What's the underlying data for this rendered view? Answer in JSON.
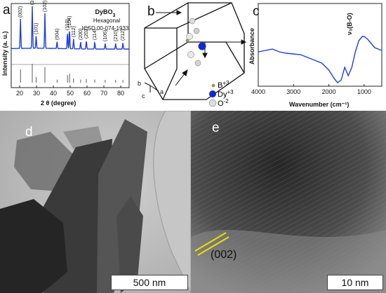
{
  "panels": {
    "a": {
      "letter": "a"
    },
    "b": {
      "letter": "b"
    },
    "c": {
      "letter": "c"
    },
    "d": {
      "letter": "d",
      "scale_bar": "500 nm"
    },
    "e": {
      "letter": "e",
      "scale_bar": "10 nm",
      "plane_label": "(002)"
    }
  },
  "xrd": {
    "compound": "DyBO",
    "compound_sub": "3",
    "phase": "Hexagonal",
    "card": "ICSD 00-074-1933",
    "xlabel": "2 θ (degree)",
    "ylabel": "Intensity (a. u.)",
    "xticks": [
      "20",
      "30",
      "40",
      "50",
      "60",
      "70",
      "80"
    ],
    "peaks": [
      {
        "label": "(002)",
        "x": 20.5
      },
      {
        "label": "(100)",
        "x": 27.5
      },
      {
        "label": "(101)",
        "x": 29.8
      },
      {
        "label": "(102)",
        "x": 35.0
      },
      {
        "label": "(004)",
        "x": 42.2
      },
      {
        "label": "(110)",
        "x": 48.4
      },
      {
        "label": "(104)",
        "x": 49.6
      },
      {
        "label": "(112)",
        "x": 52.0
      },
      {
        "label": "(200)",
        "x": 56.2
      },
      {
        "label": "(202)",
        "x": 59.6
      },
      {
        "label": "(114)",
        "x": 64.6
      },
      {
        "label": "(106)",
        "x": 70.8
      },
      {
        "label": "(210)",
        "x": 77.0
      },
      {
        "label": "(212)",
        "x": 81.3
      }
    ],
    "reference_sticks": [
      20.5,
      27.5,
      29.8,
      35.0,
      42.2,
      48.4,
      49.6,
      52.0,
      56.2,
      59.6,
      64.6,
      70.8,
      77.0,
      81.3
    ]
  },
  "structure": {
    "axes": [
      "b",
      "c",
      "a"
    ],
    "legend": [
      {
        "element": "B",
        "charge": "+3",
        "color": "#8fa14f"
      },
      {
        "element": "Dy",
        "charge": "+3",
        "color": "#1428c8"
      },
      {
        "element": "O",
        "charge": "-2",
        "color": "#d0d0d0"
      }
    ]
  },
  "ftir": {
    "ylabel": "Absorbance",
    "xlabel": "Wavenumber (cm⁻¹)",
    "xticks": [
      "4000",
      "3000",
      "2000",
      "1000"
    ],
    "annotation": "ν₃(B-O)",
    "color": "#1f3fd6"
  }
}
